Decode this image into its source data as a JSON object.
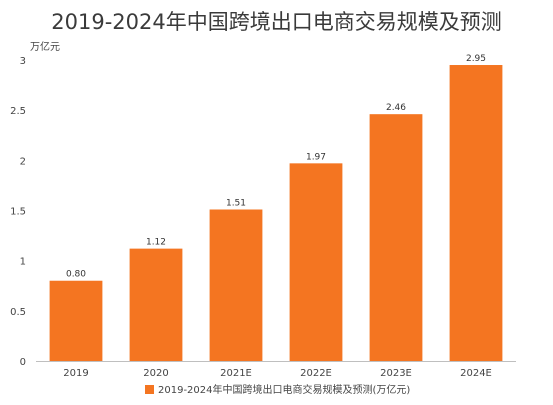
{
  "chart_data": {
    "type": "bar",
    "title": "2019-2024年中国跨境出口电商交易规模及预测",
    "ylabel": "万亿元",
    "xlabel": "",
    "categories": [
      "2019",
      "2020",
      "2021E",
      "2022E",
      "2023E",
      "2024E"
    ],
    "series": [
      {
        "name": "2019-2024年中国跨境出口电商交易规模及预测(万亿元)",
        "values": [
          0.8,
          1.12,
          1.51,
          1.97,
          2.46,
          2.95
        ],
        "labels": [
          "0.80",
          "1.12",
          "1.51",
          "1.97",
          "2.46",
          "2.95"
        ],
        "color": "#f47521"
      }
    ],
    "ylim": [
      0,
      3
    ],
    "yticks": [
      0,
      0.5,
      1,
      1.5,
      2,
      2.5,
      3
    ],
    "ytick_labels": [
      "0",
      "0.5",
      "1",
      "1.5",
      "2",
      "2.5",
      "3"
    ],
    "grid": false,
    "legend": "bottom-center"
  }
}
